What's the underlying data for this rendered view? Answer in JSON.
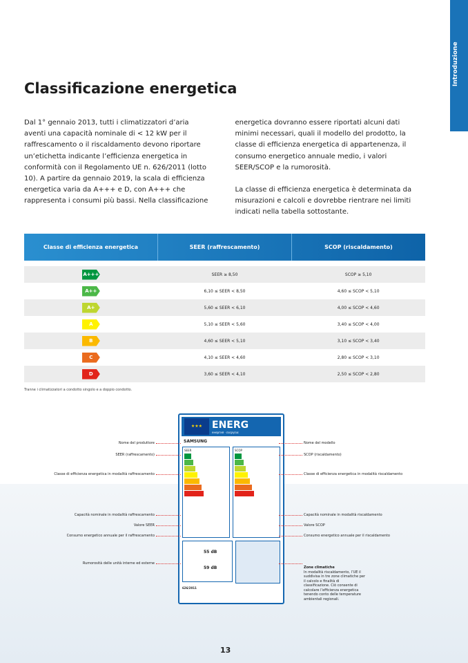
{
  "side_tab": "Introduzione",
  "title": "Classificazione energetica",
  "paragraphs": [
    "Dal 1° gennaio 2013, tutti i climatizzatori d’aria aventi una capacità nominale di < 12 kW per il raffrescamento o il riscaldamento devono riportare un’etichetta indicante l’efficienza energetica in conformità con il Regolamento UE n. 626/2011 (lotto 10). A partire da gennaio 2019, la scala di efficienza energetica varia da A+++ e D, con A+++ che rappresenta i consumi più bassi. Nella classificazione energetica dovranno essere riportati alcuni dati minimi necessari, quali il modello del prodotto, la classe di efficienza energetica di appartenenza, il consumo energetico annuale medio, i valori SEER/SCOP e la rumorosità.",
    "La classe di efficienza energetica è determinata da misurazioni e calcoli e dovrebbe rientrare nei limiti indicati nella tabella sottostante."
  ],
  "table": {
    "header": [
      "Classe di efficienza energetica",
      "SEER (raffrescamento)",
      "SCOP (riscaldamento)"
    ],
    "rows": [
      [
        "A+++",
        "SEER ≥ 8,50",
        "SCOP ≥ 5,10"
      ],
      [
        "A++",
        "6,10 ≤ SEER < 8,50",
        "4,60 ≤ SCOP < 5,10"
      ],
      [
        "A+",
        "5,60 ≤ SEER < 6,10",
        "4,00 ≤ SCOP < 4,60"
      ],
      [
        "A",
        "5,10 ≤ SEER < 5,60",
        "3,40 ≤ SCOP < 4,00"
      ],
      [
        "B",
        "4,60 ≤ SEER < 5,10",
        "3,10 ≤ SCOP < 3,40"
      ],
      [
        "C",
        "4,10 ≤ SEER < 4,60",
        "2,80 ≤ SCOP < 3,10"
      ],
      [
        "D",
        "3,60 ≤ SEER < 4,10",
        "2,50 ≤ SCOP < 2,80"
      ]
    ]
  },
  "footnote": "Tranne i climatizzatori a condotto singolo e a doppio condotto.",
  "label": {
    "energ": "ENERG",
    "languages": "енергия · ενεργεια",
    "brand": "SAMSUNG",
    "seer": "SEER",
    "scop": "SCOP",
    "noise_indoor": "55 dB",
    "noise_outdoor": "59 dB",
    "regulation": "626/2011"
  },
  "annotations_left": [
    "Nome del produttore",
    "SEER (raffrescamento)",
    "Classe di efficienza energetica in modalità raffrescamento",
    "Capacità nominale in modalità raffrescamento",
    "Valore SEER",
    "Consumo energetico annuale per il raffrescamento",
    "Rumorosità delle unità interne ed esterne"
  ],
  "annotations_right": [
    "Nome del modello",
    "SCOP (riscaldamento)",
    "Classe di efficienza energetica in modalità riscaldamento",
    "Capacità nominale in modalità riscaldamento",
    "Valore SCOP",
    "Consumo energetico annuale per il riscaldamento",
    "Zone climatiche"
  ],
  "zone_note": "In modalità riscaldamento, l’UE il suddivisa in tre zone climatiche per il calcolo e finalità di classificazione. Ciò consente di calcolare l’efficienza energetica tenendo conto delle temperature ambientali regionali.",
  "page_number": "13"
}
